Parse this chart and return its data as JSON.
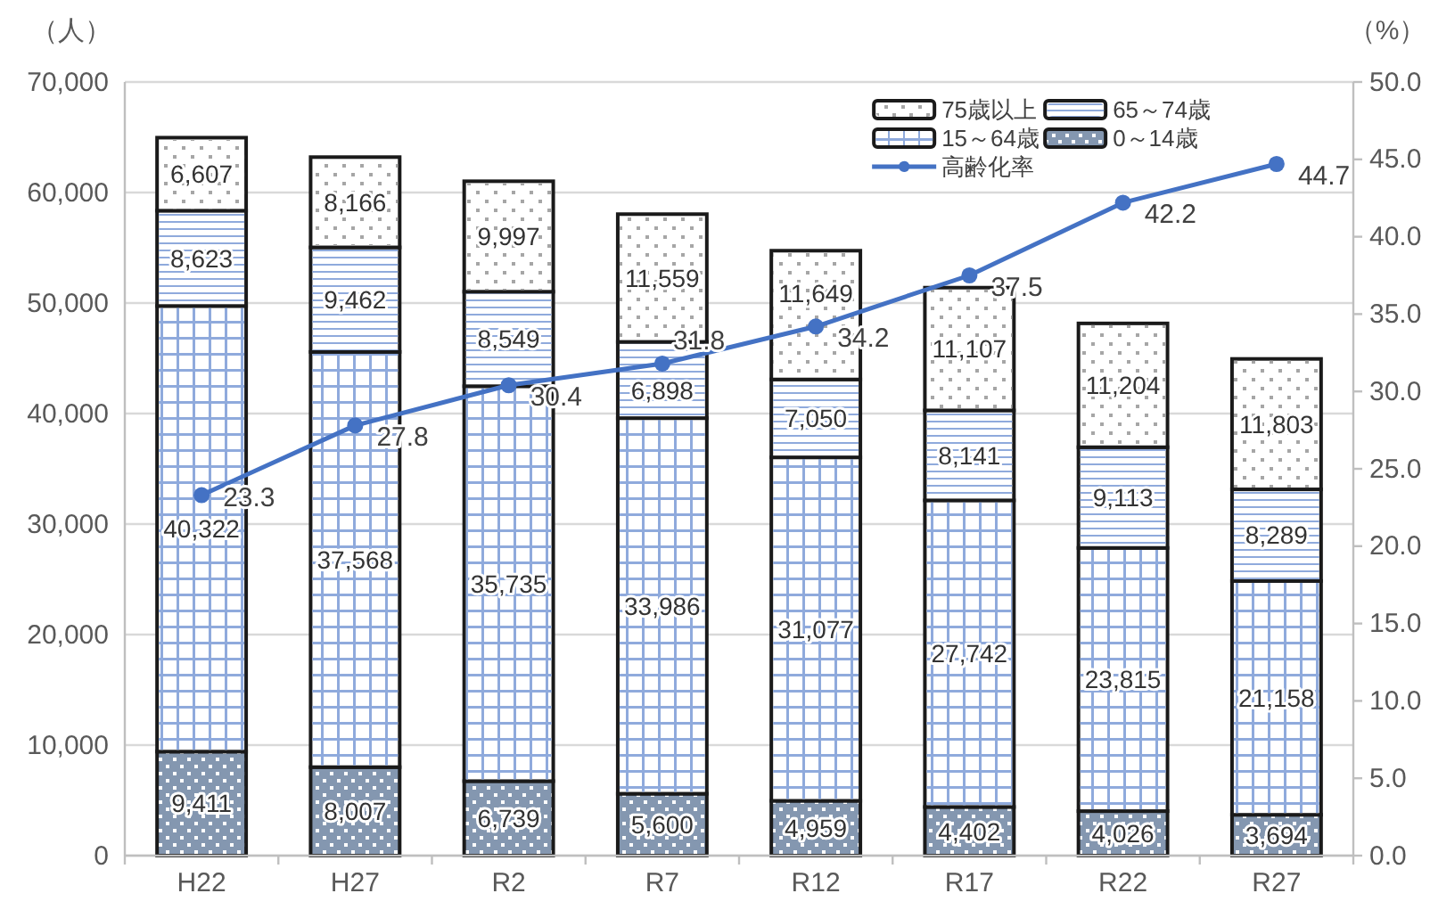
{
  "chart_data": {
    "type": "bar",
    "stacked": true,
    "categories": [
      "H22",
      "H27",
      "R2",
      "R7",
      "R12",
      "R17",
      "R22",
      "R27"
    ],
    "series": [
      {
        "name": "0～14歳",
        "color": "#8497b0",
        "values": [
          9411,
          8007,
          6739,
          5600,
          4959,
          4402,
          4026,
          3694
        ],
        "value_labels": [
          "9,411",
          "8,007",
          "6,739",
          "5,600",
          "4,959",
          "4,402",
          "4,026",
          "3,694"
        ]
      },
      {
        "name": "15～64歳",
        "color": "#ffffff",
        "values": [
          40322,
          37568,
          35735,
          33986,
          31077,
          27742,
          23815,
          21158
        ],
        "value_labels": [
          "40,322",
          "37,568",
          "35,735",
          "33,986",
          "31,077",
          "27,742",
          "23,815",
          "21,158"
        ]
      },
      {
        "name": "65～74歳",
        "color": "#ffffff",
        "values": [
          8623,
          9462,
          8549,
          6898,
          7050,
          8141,
          9113,
          8289
        ],
        "value_labels": [
          "8,623",
          "9,462",
          "8,549",
          "6,898",
          "7,050",
          "8,141",
          "9,113",
          "8,289"
        ]
      },
      {
        "name": "75歳以上",
        "color": "#ffffff",
        "values": [
          6607,
          8166,
          9997,
          11559,
          11649,
          11107,
          11204,
          11803
        ],
        "value_labels": [
          "6,607",
          "8,166",
          "9,997",
          "11,559",
          "11,649",
          "11,107",
          "11,204",
          "11,803"
        ]
      },
      {
        "name": "高齢化率",
        "type": "line",
        "axis": "y2",
        "color": "#4472c4",
        "values": [
          23.3,
          27.8,
          30.4,
          31.8,
          34.2,
          37.5,
          42.2,
          44.7
        ],
        "value_labels": [
          "23.3",
          "27.8",
          "30.4",
          "31.8",
          "34.2",
          "37.5",
          "42.2",
          "44.7"
        ]
      }
    ],
    "ylabel": "（人）",
    "y2label": "（%）",
    "ylim": [
      0,
      70000
    ],
    "yticks": [
      0,
      {
        "value": 10000,
        "label": "10,000"
      },
      {
        "value": 20000,
        "label": "20,000"
      },
      {
        "value": 30000,
        "label": "30,000"
      },
      {
        "value": 40000,
        "label": "40,000"
      },
      {
        "value": 50000,
        "label": "50,000"
      },
      {
        "value": 60000,
        "label": "60,000"
      },
      {
        "value": 70000,
        "label": "70,000"
      }
    ],
    "y2lim": [
      0,
      50
    ],
    "y2ticks": [
      {
        "value": 0,
        "label": "0.0"
      },
      {
        "value": 5,
        "label": "5.0"
      },
      {
        "value": 10,
        "label": "10.0"
      },
      {
        "value": 15,
        "label": "15.0"
      },
      {
        "value": 20,
        "label": "20.0"
      },
      {
        "value": 25,
        "label": "25.0"
      },
      {
        "value": 30,
        "label": "30.0"
      },
      {
        "value": 35,
        "label": "35.0"
      },
      {
        "value": 40,
        "label": "40.0"
      },
      {
        "value": 45,
        "label": "45.0"
      },
      {
        "value": 50,
        "label": "50.0"
      }
    ],
    "grid": "y",
    "legend": "top right",
    "marker": "circle"
  }
}
